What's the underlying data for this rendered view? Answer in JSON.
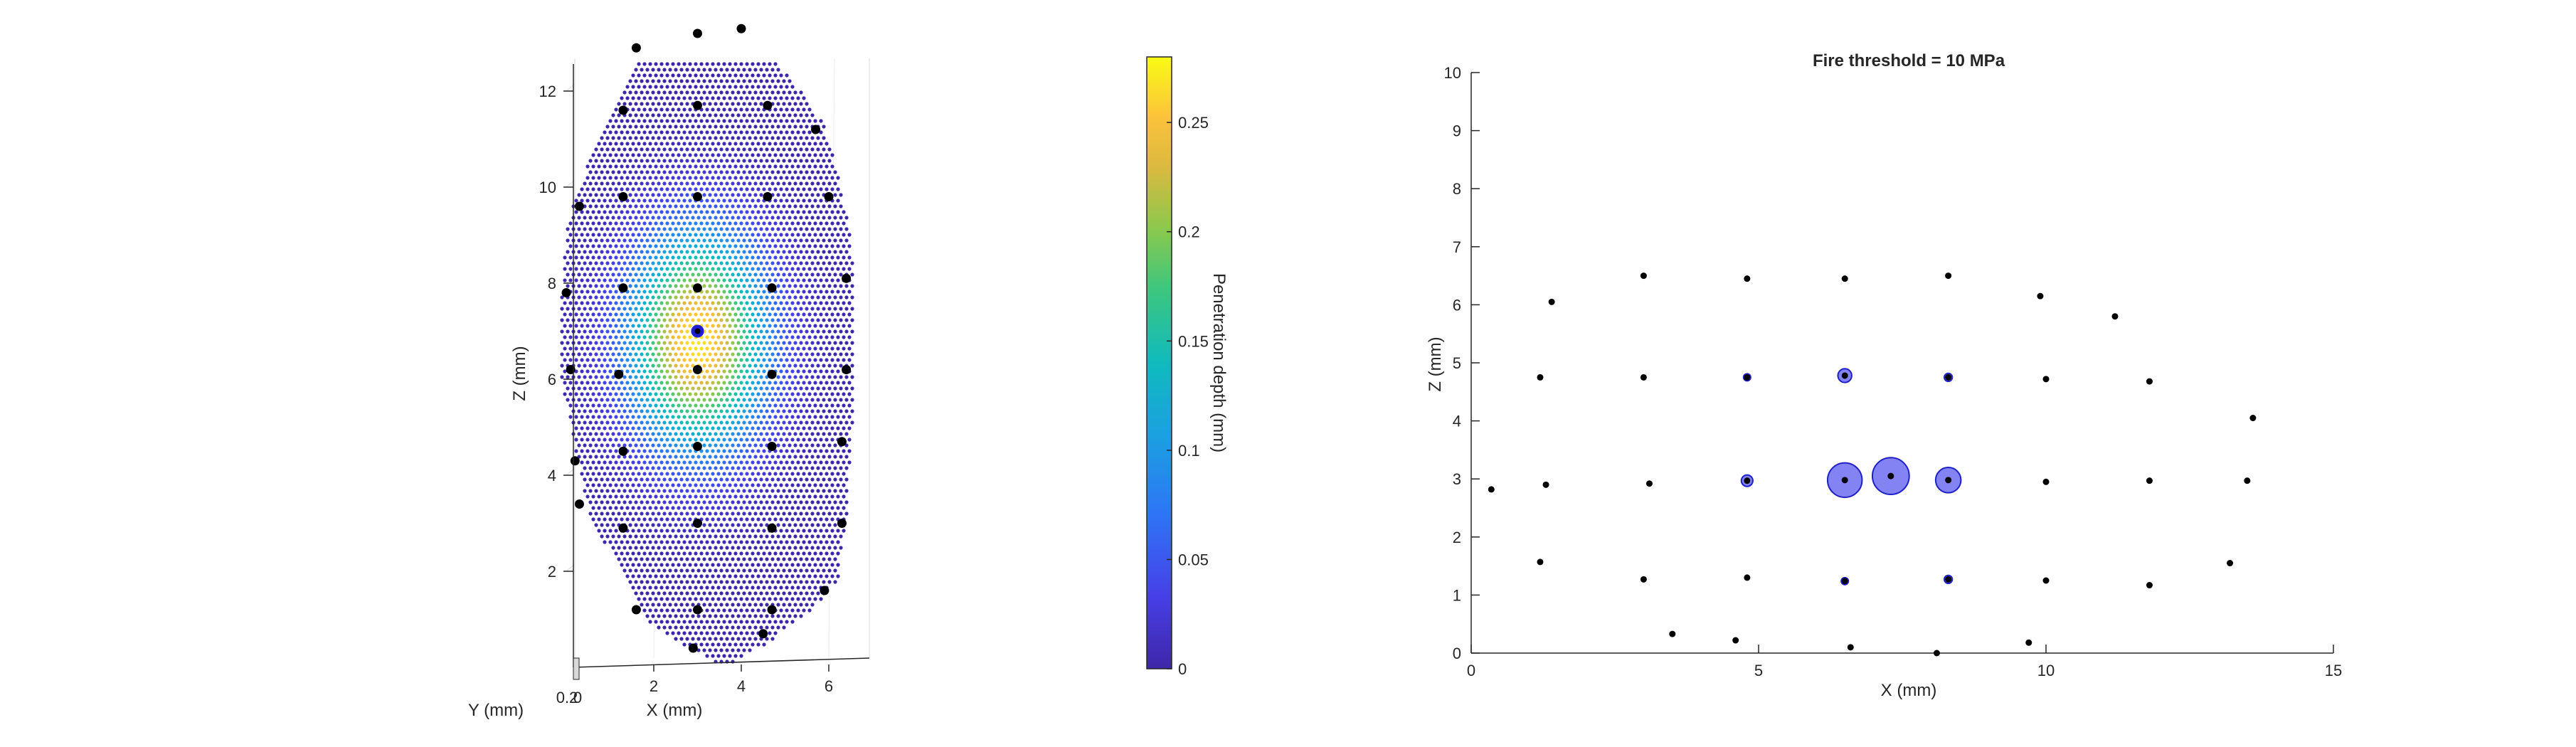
{
  "chart_data": [
    {
      "type": "scatter3d",
      "xlabel": "X (mm)",
      "ylabel": "Y (mm)",
      "zlabel": "Z (mm)",
      "x_ticks": [
        "2",
        "4",
        "6"
      ],
      "y_ticks": [
        "0.2",
        "0"
      ],
      "z_ticks": [
        "2",
        "4",
        "6",
        "8",
        "10",
        "12"
      ],
      "xlim": [
        0,
        6.6
      ],
      "zlim": [
        0,
        13.4
      ],
      "colorbar": {
        "label": "Penetration depth (mm)",
        "ticks": [
          "0",
          "0.05",
          "0.1",
          "0.15",
          "0.2",
          "0.25"
        ],
        "tick_values": [
          0,
          0.05,
          0.1,
          0.15,
          0.2,
          0.25
        ],
        "range": [
          0,
          0.28
        ],
        "colormap": "parula"
      },
      "peak_depth": 0.27,
      "peak_center": {
        "x": 3.0,
        "z": 6.8
      },
      "grid": true,
      "electrodes": [
        {
          "x": 1.6,
          "z": 12.9
        },
        {
          "x": 3.0,
          "z": 13.2
        },
        {
          "x": 4.0,
          "z": 13.3
        },
        {
          "x": 1.3,
          "z": 11.6
        },
        {
          "x": 3.0,
          "z": 11.7
        },
        {
          "x": 4.6,
          "z": 11.7
        },
        {
          "x": 5.7,
          "z": 11.2
        },
        {
          "x": 0.3,
          "z": 9.6
        },
        {
          "x": 1.3,
          "z": 9.8
        },
        {
          "x": 3.0,
          "z": 9.8
        },
        {
          "x": 4.6,
          "z": 9.8
        },
        {
          "x": 6.0,
          "z": 9.8
        },
        {
          "x": 0.0,
          "z": 7.8
        },
        {
          "x": 1.3,
          "z": 7.9
        },
        {
          "x": 3.0,
          "z": 7.9
        },
        {
          "x": 4.7,
          "z": 7.9
        },
        {
          "x": 6.4,
          "z": 8.1
        },
        {
          "x": 0.1,
          "z": 6.2
        },
        {
          "x": 1.2,
          "z": 6.1
        },
        {
          "x": 3.0,
          "z": 6.2
        },
        {
          "x": 4.7,
          "z": 6.1
        },
        {
          "x": 6.4,
          "z": 6.2
        },
        {
          "x": 0.2,
          "z": 4.3
        },
        {
          "x": 1.3,
          "z": 4.5
        },
        {
          "x": 3.0,
          "z": 4.6
        },
        {
          "x": 4.7,
          "z": 4.6
        },
        {
          "x": 6.3,
          "z": 4.7
        },
        {
          "x": 0.3,
          "z": 3.4
        },
        {
          "x": 1.3,
          "z": 2.9
        },
        {
          "x": 3.0,
          "z": 3.0
        },
        {
          "x": 4.7,
          "z": 2.9
        },
        {
          "x": 6.3,
          "z": 3.0
        },
        {
          "x": 5.9,
          "z": 1.6
        },
        {
          "x": 1.6,
          "z": 1.2
        },
        {
          "x": 3.0,
          "z": 1.2
        },
        {
          "x": 4.7,
          "z": 1.2
        },
        {
          "x": 2.9,
          "z": 0.4
        },
        {
          "x": 4.5,
          "z": 0.7
        }
      ],
      "active_electrode": {
        "x": 3.0,
        "z": 7.0
      }
    },
    {
      "type": "scatter",
      "title": "Fire threshold = 10 MPa",
      "xlabel": "X (mm)",
      "ylabel": "Z (mm)",
      "xlim": [
        0,
        15
      ],
      "ylim": [
        0,
        10
      ],
      "x_ticks": [
        "0",
        "5",
        "10",
        "15"
      ],
      "y_ticks": [
        "0",
        "1",
        "2",
        "3",
        "4",
        "5",
        "6",
        "7",
        "8",
        "9",
        "10"
      ],
      "electrodes": [
        {
          "x": 3.0,
          "z": 6.5
        },
        {
          "x": 4.8,
          "z": 6.45
        },
        {
          "x": 6.5,
          "z": 6.45
        },
        {
          "x": 8.3,
          "z": 6.5
        },
        {
          "x": 1.4,
          "z": 6.05
        },
        {
          "x": 9.9,
          "z": 6.15
        },
        {
          "x": 11.2,
          "z": 5.8
        },
        {
          "x": 1.2,
          "z": 4.75
        },
        {
          "x": 3.0,
          "z": 4.75
        },
        {
          "x": 4.8,
          "z": 4.75
        },
        {
          "x": 6.5,
          "z": 4.78
        },
        {
          "x": 8.3,
          "z": 4.75
        },
        {
          "x": 10.0,
          "z": 4.72
        },
        {
          "x": 11.8,
          "z": 4.68
        },
        {
          "x": 13.6,
          "z": 4.05
        },
        {
          "x": 0.35,
          "z": 2.82
        },
        {
          "x": 1.3,
          "z": 2.9
        },
        {
          "x": 3.1,
          "z": 2.92
        },
        {
          "x": 4.8,
          "z": 2.97
        },
        {
          "x": 6.5,
          "z": 2.98
        },
        {
          "x": 7.3,
          "z": 3.05
        },
        {
          "x": 8.3,
          "z": 2.98
        },
        {
          "x": 10.0,
          "z": 2.95
        },
        {
          "x": 11.8,
          "z": 2.97
        },
        {
          "x": 13.5,
          "z": 2.97
        },
        {
          "x": 1.2,
          "z": 1.57
        },
        {
          "x": 13.2,
          "z": 1.55
        },
        {
          "x": 3.0,
          "z": 1.27
        },
        {
          "x": 4.8,
          "z": 1.3
        },
        {
          "x": 6.5,
          "z": 1.24
        },
        {
          "x": 8.3,
          "z": 1.27
        },
        {
          "x": 10.0,
          "z": 1.25
        },
        {
          "x": 11.8,
          "z": 1.17
        },
        {
          "x": 3.5,
          "z": 0.33
        },
        {
          "x": 4.6,
          "z": 0.22
        },
        {
          "x": 6.6,
          "z": 0.1
        },
        {
          "x": 8.1,
          "z": 0.0
        },
        {
          "x": 9.7,
          "z": 0.18
        }
      ],
      "fire_circles": [
        {
          "x": 4.8,
          "z": 4.75,
          "r": 0.05
        },
        {
          "x": 6.5,
          "z": 4.78,
          "r": 0.12
        },
        {
          "x": 8.3,
          "z": 4.75,
          "r": 0.07
        },
        {
          "x": 4.8,
          "z": 2.97,
          "r": 0.1
        },
        {
          "x": 6.5,
          "z": 2.98,
          "r": 0.3
        },
        {
          "x": 7.3,
          "z": 3.05,
          "r": 0.32
        },
        {
          "x": 8.3,
          "z": 2.98,
          "r": 0.22
        },
        {
          "x": 6.5,
          "z": 1.24,
          "r": 0.05
        },
        {
          "x": 8.3,
          "z": 1.27,
          "r": 0.07
        }
      ],
      "fire_color": "#5a5aef"
    }
  ]
}
